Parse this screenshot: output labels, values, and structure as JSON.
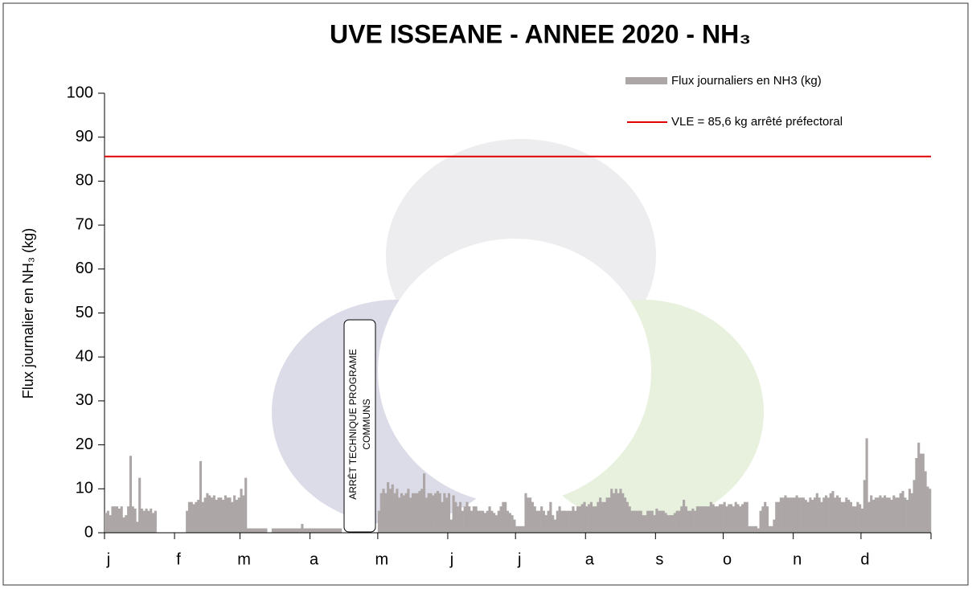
{
  "chart_data": {
    "type": "bar",
    "title": "UVE ISSEANE - ANNEE 2020 - NH₃",
    "y_label": "Flux journalier en NH₃ (kg)",
    "annotation": [
      "ARRÊT TECHNIQUE PROGRAME",
      "COMMUNS"
    ],
    "ylim": [
      0,
      100
    ],
    "yticks": [
      0,
      10,
      20,
      30,
      40,
      50,
      60,
      70,
      80,
      90,
      100
    ],
    "grid": false,
    "categories": [
      "j",
      null,
      null,
      null,
      null,
      null,
      null,
      null,
      null,
      null,
      null,
      null,
      null,
      null,
      null,
      null,
      null,
      null,
      null,
      null,
      null,
      null,
      null,
      null,
      null,
      null,
      null,
      null,
      null,
      null,
      null,
      "f",
      null,
      null,
      null,
      null,
      null,
      null,
      null,
      null,
      null,
      null,
      null,
      null,
      null,
      null,
      null,
      null,
      null,
      null,
      null,
      null,
      null,
      null,
      null,
      null,
      null,
      null,
      null,
      null,
      "m",
      null,
      null,
      null,
      null,
      null,
      null,
      null,
      null,
      null,
      null,
      null,
      null,
      null,
      null,
      null,
      null,
      null,
      null,
      null,
      null,
      null,
      null,
      null,
      null,
      null,
      null,
      null,
      null,
      null,
      null,
      "a",
      null,
      null,
      null,
      null,
      null,
      null,
      null,
      null,
      null,
      null,
      null,
      null,
      null,
      null,
      null,
      null,
      null,
      null,
      null,
      null,
      null,
      null,
      null,
      null,
      null,
      null,
      null,
      null,
      null,
      "m",
      null,
      null,
      null,
      null,
      null,
      null,
      null,
      null,
      null,
      null,
      null,
      null,
      null,
      null,
      null,
      null,
      null,
      null,
      null,
      null,
      null,
      null,
      null,
      null,
      null,
      null,
      null,
      null,
      null,
      null,
      "j",
      null,
      null,
      null,
      null,
      null,
      null,
      null,
      null,
      null,
      null,
      null,
      null,
      null,
      null,
      null,
      null,
      null,
      null,
      null,
      null,
      null,
      null,
      null,
      null,
      null,
      null,
      null,
      null,
      null,
      "j",
      null,
      null,
      null,
      null,
      null,
      null,
      null,
      null,
      null,
      null,
      null,
      null,
      null,
      null,
      null,
      null,
      null,
      null,
      null,
      null,
      null,
      null,
      null,
      null,
      null,
      null,
      null,
      null,
      null,
      null,
      "a",
      null,
      null,
      null,
      null,
      null,
      null,
      null,
      null,
      null,
      null,
      null,
      null,
      null,
      null,
      null,
      null,
      null,
      null,
      null,
      null,
      null,
      null,
      null,
      null,
      null,
      null,
      null,
      null,
      null,
      null,
      "s",
      null,
      null,
      null,
      null,
      null,
      null,
      null,
      null,
      null,
      null,
      null,
      null,
      null,
      null,
      null,
      null,
      null,
      null,
      null,
      null,
      null,
      null,
      null,
      null,
      null,
      null,
      null,
      null,
      null,
      "o",
      null,
      null,
      null,
      null,
      null,
      null,
      null,
      null,
      null,
      null,
      null,
      null,
      null,
      null,
      null,
      null,
      null,
      null,
      null,
      null,
      null,
      null,
      null,
      null,
      null,
      null,
      null,
      null,
      null,
      null,
      "n",
      null,
      null,
      null,
      null,
      null,
      null,
      null,
      null,
      null,
      null,
      null,
      null,
      null,
      null,
      null,
      null,
      null,
      null,
      null,
      null,
      null,
      null,
      null,
      null,
      null,
      null,
      null,
      null,
      null,
      "d",
      null,
      null,
      null,
      null,
      null,
      null,
      null,
      null,
      null,
      null,
      null,
      null,
      null,
      null,
      null,
      null,
      null,
      null,
      null,
      null,
      null,
      null,
      null,
      null,
      null,
      null,
      null,
      null,
      null,
      null
    ],
    "series": [
      {
        "name": "Flux journaliers en NH3 (kg)",
        "color": "#aca6a6",
        "values": [
          4.5,
          5,
          4,
          6,
          6,
          6,
          5.5,
          6,
          3.5,
          4,
          6,
          17.5,
          6,
          5.5,
          2.5,
          12.5,
          5.5,
          5,
          5.5,
          5,
          5.5,
          4.5,
          5,
          0,
          0,
          0,
          0,
          0,
          0,
          0,
          0,
          0,
          0,
          0,
          0,
          0,
          5,
          7,
          7,
          6.5,
          7,
          7.5,
          16.3,
          7,
          8,
          9,
          8.5,
          8,
          8.5,
          7.5,
          8,
          8,
          7.5,
          8.5,
          8,
          8,
          7,
          8.5,
          7.5,
          8,
          10,
          8.5,
          12.5,
          1,
          1,
          1,
          1,
          1,
          1,
          1,
          1,
          1,
          0,
          0,
          1,
          1,
          1,
          1,
          1,
          1,
          1,
          1,
          1,
          1,
          1,
          1,
          1,
          2,
          1,
          1,
          1,
          1,
          1,
          1,
          1,
          1,
          1,
          1,
          1,
          1,
          1,
          1,
          1,
          1,
          1,
          0,
          0,
          0,
          0,
          0,
          0,
          0,
          0,
          0,
          0,
          0,
          0,
          0,
          0,
          0,
          0,
          5,
          9,
          10,
          9,
          11.5,
          10,
          11,
          9,
          10,
          8,
          9,
          8.5,
          9,
          10,
          8,
          9,
          9,
          9,
          9.5,
          10,
          13.5,
          8,
          9,
          9,
          8.5,
          9,
          9.5,
          9,
          7,
          9,
          8,
          9,
          3,
          8.5,
          7,
          6,
          7,
          5,
          6,
          7,
          6,
          5,
          6,
          6,
          5,
          5,
          5,
          4.5,
          5,
          6,
          5,
          4.5,
          4,
          5,
          6,
          7,
          7,
          5,
          4.5,
          4,
          3,
          1.5,
          1.5,
          1.5,
          1.5,
          9,
          8,
          8,
          7,
          6,
          5,
          5,
          6,
          5,
          4,
          5,
          7,
          4,
          3,
          5,
          6,
          5,
          5,
          5,
          5,
          5,
          6,
          5,
          6,
          6,
          6.5,
          7,
          6,
          6.5,
          7,
          6,
          6,
          7,
          8,
          7,
          7,
          8,
          8,
          10,
          9,
          10,
          9,
          10,
          9,
          8,
          7,
          6,
          5,
          5,
          5,
          5,
          5,
          4,
          4,
          5,
          5,
          5,
          4,
          5.5,
          5,
          5,
          5,
          4.5,
          4,
          4,
          4,
          4.5,
          5,
          5,
          6,
          7.5,
          6,
          5,
          5,
          5.5,
          5,
          6,
          6,
          6,
          6,
          6,
          6,
          7,
          6.5,
          6,
          6,
          6.5,
          6.5,
          7,
          6,
          6.5,
          6.5,
          6,
          7,
          6.5,
          6,
          6.5,
          7,
          7,
          1.5,
          1.5,
          1.5,
          1.5,
          1,
          5,
          6,
          7,
          6,
          1.5,
          1.5,
          3,
          7,
          7,
          8,
          8,
          8.5,
          8,
          8,
          8,
          8,
          8.5,
          8,
          8,
          8,
          7.5,
          7,
          8,
          7.5,
          8,
          9,
          8,
          7,
          8,
          8.5,
          8,
          9,
          9.5,
          8,
          8.5,
          8,
          7,
          7,
          8,
          7.5,
          7,
          6,
          6,
          7,
          6.5,
          5.5,
          12,
          21.5,
          7,
          8.5,
          7.5,
          8,
          8,
          8.5,
          8,
          8.5,
          8,
          8,
          7.5,
          8.5,
          8,
          8,
          9,
          9.5,
          8,
          7.5,
          10,
          9,
          12,
          17,
          20.5,
          18,
          18,
          14,
          10.5,
          10
        ]
      }
    ],
    "hline": {
      "name": "VLE = 85,6 kg arrêté préfectoral",
      "value": 85.6,
      "color": "#e00000"
    }
  }
}
